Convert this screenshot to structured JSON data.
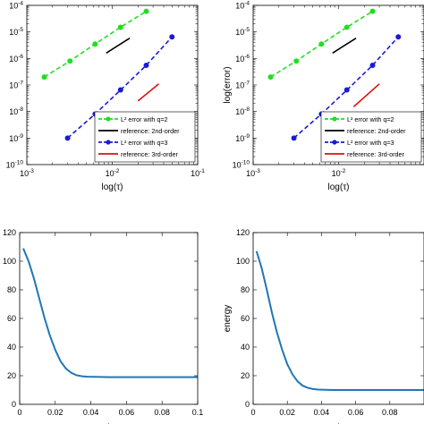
{
  "chart_data": [
    {
      "type": "line",
      "xscale": "log",
      "yscale": "log",
      "xlabel": "log(τ)",
      "ylabel": "",
      "xlim": [
        0.001,
        0.1
      ],
      "ylim": [
        1e-10,
        0.0001
      ],
      "xticks": [
        {
          "v": 0.001,
          "b": "10",
          "e": "-3"
        },
        {
          "v": 0.01,
          "b": "10",
          "e": "-2"
        },
        {
          "v": 0.1,
          "b": "10",
          "e": "-1"
        }
      ],
      "yticks": [
        {
          "v": 1e-10,
          "b": "10",
          "e": "-10"
        },
        {
          "v": 1e-09,
          "b": "10",
          "e": "-9"
        },
        {
          "v": 1e-08,
          "b": "10",
          "e": "-8"
        },
        {
          "v": 1e-07,
          "b": "10",
          "e": "-7"
        },
        {
          "v": 1e-06,
          "b": "10",
          "e": "-6"
        },
        {
          "v": 1e-05,
          "b": "10",
          "e": "-5"
        },
        {
          "v": 0.0001,
          "b": "10",
          "e": "-4"
        }
      ],
      "legend_position": "bottom-right",
      "series": [
        {
          "name": "L² error with q=2",
          "color": "#22dd22",
          "style": "dashed-markers",
          "x": [
            0.0016,
            0.0032,
            0.0063,
            0.0125,
            0.025
          ],
          "y": [
            2e-07,
            8e-07,
            3.5e-06,
            1.5e-05,
            6e-05
          ]
        },
        {
          "name": "reference: 2nd-order",
          "color": "#000000",
          "style": "solid",
          "x": [
            0.0085,
            0.016
          ],
          "y": [
            1.6e-06,
            5.8e-06
          ]
        },
        {
          "name": "L² error with q=3",
          "color": "#1a1adb",
          "style": "dashed-markers",
          "x": [
            0.003,
            0.0063,
            0.0125,
            0.025,
            0.05
          ],
          "y": [
            1e-09,
            8e-09,
            6.5e-08,
            5.5e-07,
            6.5e-06
          ]
        },
        {
          "name": "reference: 3rd-order",
          "color": "#dd1111",
          "style": "solid",
          "x": [
            0.02,
            0.035
          ],
          "y": [
            2.5e-08,
            1.1e-07
          ]
        }
      ]
    },
    {
      "type": "line",
      "xscale": "log",
      "yscale": "log",
      "xlabel": "log(τ)",
      "ylabel": "log(error)",
      "xlim": [
        0.001,
        0.1
      ],
      "ylim": [
        1e-10,
        0.0001
      ],
      "xticks": [
        {
          "v": 0.001,
          "b": "10",
          "e": "-3"
        },
        {
          "v": 0.01,
          "b": "10",
          "e": "-2"
        }
      ],
      "yticks": [
        {
          "v": 1e-10,
          "b": "10",
          "e": "-10"
        },
        {
          "v": 1e-09,
          "b": "10",
          "e": "-9"
        },
        {
          "v": 1e-08,
          "b": "10",
          "e": "-8"
        },
        {
          "v": 1e-07,
          "b": "10",
          "e": "-7"
        },
        {
          "v": 1e-06,
          "b": "10",
          "e": "-6"
        },
        {
          "v": 1e-05,
          "b": "10",
          "e": "-5"
        },
        {
          "v": 0.0001,
          "b": "10",
          "e": "-4"
        }
      ],
      "legend_position": "bottom-right",
      "series": [
        {
          "name": "L² error with q=2",
          "color": "#22dd22",
          "style": "dashed-markers",
          "x": [
            0.0016,
            0.0032,
            0.0063,
            0.0125,
            0.025
          ],
          "y": [
            2e-07,
            8e-07,
            3.5e-06,
            1.5e-05,
            6e-05
          ]
        },
        {
          "name": "reference: 2nd-order",
          "color": "#000000",
          "style": "solid",
          "x": [
            0.0085,
            0.016
          ],
          "y": [
            1.6e-06,
            5.8e-06
          ]
        },
        {
          "name": "L² error with q=3",
          "color": "#1a1adb",
          "style": "dashed-markers",
          "x": [
            0.003,
            0.0063,
            0.0125,
            0.025,
            0.05
          ],
          "y": [
            1e-09,
            8e-09,
            6.5e-08,
            5.5e-07,
            6.5e-06
          ]
        },
        {
          "name": "reference: 3rd-order",
          "color": "#dd1111",
          "style": "solid",
          "x": [
            0.015,
            0.03
          ],
          "y": [
            1.5e-08,
            1.1e-07
          ]
        }
      ]
    },
    {
      "type": "line",
      "xscale": "linear",
      "yscale": "linear",
      "xlabel": "t",
      "ylabel": "",
      "xlim": [
        0,
        0.1
      ],
      "ylim": [
        0,
        120
      ],
      "xticks": [
        {
          "v": 0,
          "t": "0"
        },
        {
          "v": 0.02,
          "t": "0.02"
        },
        {
          "v": 0.04,
          "t": "0.04"
        },
        {
          "v": 0.06,
          "t": "0.06"
        },
        {
          "v": 0.08,
          "t": "0.08"
        },
        {
          "v": 0.1,
          "t": "0.1"
        }
      ],
      "yticks": [
        {
          "v": 0,
          "t": "0"
        },
        {
          "v": 20,
          "t": "20"
        },
        {
          "v": 40,
          "t": "40"
        },
        {
          "v": 60,
          "t": "60"
        },
        {
          "v": 80,
          "t": "80"
        },
        {
          "v": 100,
          "t": "100"
        },
        {
          "v": 120,
          "t": "120"
        }
      ],
      "series": [
        {
          "name": "",
          "color": "#1f77b4",
          "style": "solid",
          "x": [
            0.002,
            0.005,
            0.008,
            0.011,
            0.014,
            0.017,
            0.02,
            0.023,
            0.026,
            0.029,
            0.032,
            0.035,
            0.038,
            0.041,
            0.045,
            0.05,
            0.06,
            0.08,
            0.1
          ],
          "y": [
            109,
            100,
            88,
            74,
            60,
            48,
            38,
            30,
            25,
            22,
            20.3,
            19.6,
            19.3,
            19.2,
            19.1,
            19,
            19,
            19,
            19
          ]
        }
      ]
    },
    {
      "type": "line",
      "xscale": "linear",
      "yscale": "linear",
      "xlabel": "t",
      "ylabel": "energy",
      "xlim": [
        0,
        0.1
      ],
      "ylim": [
        0,
        120
      ],
      "xticks": [
        {
          "v": 0,
          "t": "0"
        },
        {
          "v": 0.02,
          "t": "0.02"
        },
        {
          "v": 0.04,
          "t": "0.04"
        },
        {
          "v": 0.06,
          "t": "0.06"
        },
        {
          "v": 0.08,
          "t": "0.08"
        }
      ],
      "yticks": [
        {
          "v": 0,
          "t": "0"
        },
        {
          "v": 20,
          "t": "20"
        },
        {
          "v": 40,
          "t": "40"
        },
        {
          "v": 60,
          "t": "60"
        },
        {
          "v": 80,
          "t": "80"
        },
        {
          "v": 100,
          "t": "100"
        },
        {
          "v": 120,
          "t": "120"
        }
      ],
      "series": [
        {
          "name": "",
          "color": "#1f77b4",
          "style": "solid",
          "x": [
            0.002,
            0.005,
            0.008,
            0.011,
            0.014,
            0.017,
            0.02,
            0.023,
            0.026,
            0.029,
            0.032,
            0.035,
            0.038,
            0.042,
            0.047,
            0.055,
            0.07,
            0.1
          ],
          "y": [
            107,
            95,
            80,
            64,
            50,
            38,
            28,
            21,
            16,
            13,
            11.5,
            10.7,
            10.3,
            10.1,
            10,
            10,
            10,
            10
          ]
        }
      ]
    }
  ]
}
